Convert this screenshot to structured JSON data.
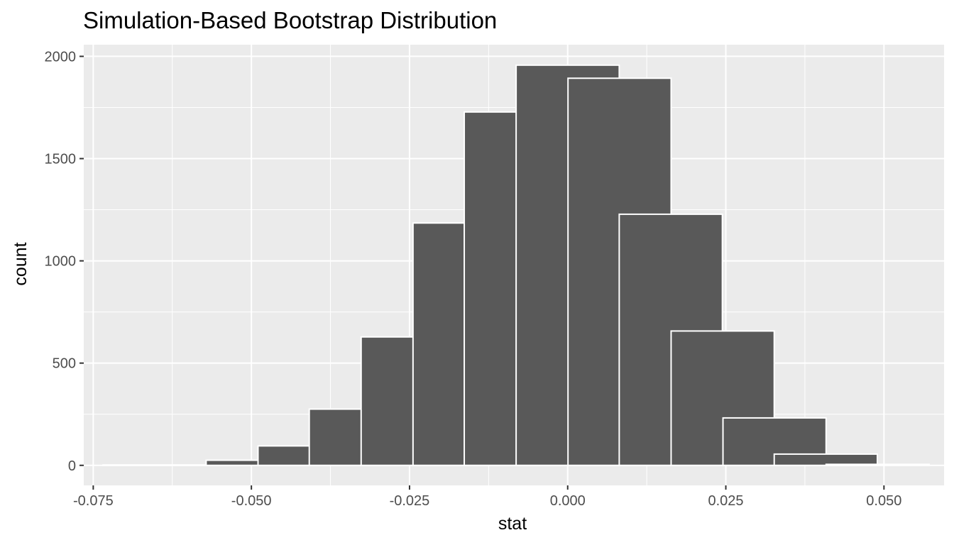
{
  "chart_data": {
    "type": "bar",
    "title": "Simulation-Based Bootstrap Distribution",
    "xlabel": "stat",
    "ylabel": "count",
    "bin_width": 0.0163,
    "bins": [
      {
        "center": -0.0653,
        "count": 2
      },
      {
        "center": -0.049,
        "count": 25
      },
      {
        "center": -0.0408,
        "count": 95
      },
      {
        "center": -0.0327,
        "count": 275
      },
      {
        "center": -0.0245,
        "count": 628
      },
      {
        "center": -0.0163,
        "count": 1185
      },
      {
        "center": -0.0082,
        "count": 1728
      },
      {
        "center": 0.0,
        "count": 1957
      },
      {
        "center": 0.0082,
        "count": 1893
      },
      {
        "center": 0.0163,
        "count": 1228
      },
      {
        "center": 0.0245,
        "count": 657
      },
      {
        "center": 0.0327,
        "count": 232
      },
      {
        "center": 0.0408,
        "count": 55
      },
      {
        "center": 0.049,
        "count": 5
      }
    ],
    "xlim": [
      -0.0765,
      0.0595
    ],
    "ylim": [
      -98,
      2057
    ],
    "x_ticks": [
      -0.075,
      -0.05,
      -0.025,
      0.0,
      0.025,
      0.05
    ],
    "x_tick_labels": [
      "-0.075",
      "-0.050",
      "-0.025",
      "0.000",
      "0.025",
      "0.050"
    ],
    "y_ticks": [
      0,
      500,
      1000,
      1500,
      2000
    ],
    "y_tick_labels": [
      "0",
      "500",
      "1000",
      "1500",
      "2000"
    ],
    "grid": true,
    "colors": {
      "panel_background": "#ebebeb",
      "grid_line": "#ffffff",
      "bar_fill": "#595959",
      "bar_outline": "#ffffff",
      "tick_color": "#333333",
      "tick_label_color": "#4d4d4d"
    }
  }
}
